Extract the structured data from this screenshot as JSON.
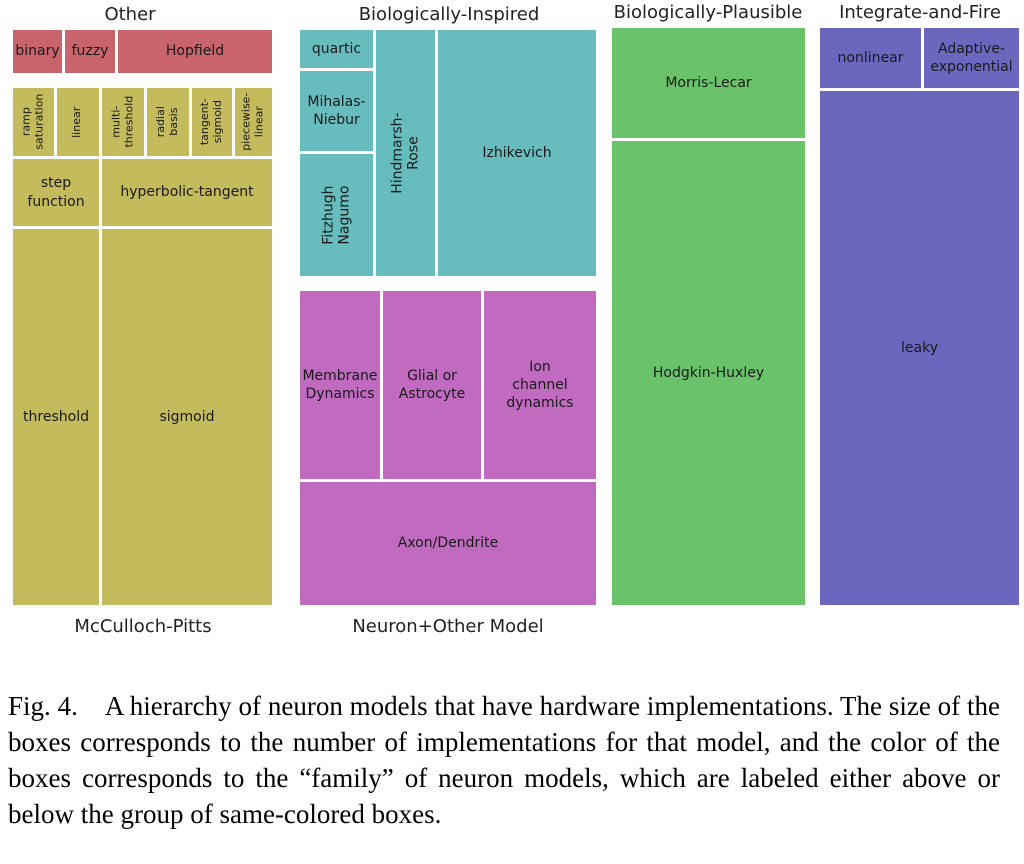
{
  "groups": {
    "other": "Other",
    "biologically_inspired": "Biologically-Inspired",
    "biologically_plausible": "Biologically-Plausible",
    "integrate_and_fire": "Integrate-and-Fire",
    "mcculloch_pitts": "McCulloch-Pitts",
    "neuron_other": "Neuron+Other Model"
  },
  "boxes": {
    "binary": "binary",
    "fuzzy": "fuzzy",
    "hopfield": "Hopfield",
    "ramp_saturation": "ramp\nsaturation",
    "linear": "linear",
    "multi_threshold": "multi-\nthreshold",
    "radial_basis": "radial\nbasis",
    "tangent_sigmoid": "tangent-\nsigmoid",
    "piecewise_linear": "piecewise-\nlinear",
    "step_function": "step\nfunction",
    "hyperbolic_tangent": "hyperbolic-tangent",
    "threshold": "threshold",
    "sigmoid": "sigmoid",
    "quartic": "quartic",
    "mihalas_niebur": "Mihalas-\nNiebur",
    "fitzhugh_nagumo": "Fitzhugh\nNagumo",
    "hindmarsh_rose": "Hindmarsh-Rose",
    "izhikevich": "Izhikevich",
    "membrane_dynamics": "Membrane\nDynamics",
    "glial_astrocyte": "Glial or\nAstrocyte",
    "ion_channel": "Ion\nchannel\ndynamics",
    "axon_dendrite": "Axon/Dendrite",
    "morris_lecar": "Morris-Lecar",
    "hodgkin_huxley": "Hodgkin-Huxley",
    "nonlinear": "nonlinear",
    "adaptive_exponential": "Adaptive-\nexponential",
    "leaky": "leaky"
  },
  "caption": "Fig. 4. A hierarchy of neuron models that have hardware implementations. The size of the boxes corresponds to the number of implementations for that model, and the color of the boxes corresponds to the “family” of neuron models, which are labeled either above or below the group of same-colored boxes.",
  "chart_data": {
    "type": "treemap",
    "title": "",
    "families": [
      {
        "name": "Other",
        "color": "#c9646c",
        "items": [
          "binary",
          "fuzzy",
          "Hopfield"
        ]
      },
      {
        "name": "McCulloch-Pitts",
        "color": "#c3bb5c",
        "items": [
          "ramp saturation",
          "linear",
          "multi-threshold",
          "radial basis",
          "tangent-sigmoid",
          "piecewise-linear",
          "step function",
          "hyperbolic-tangent",
          "threshold",
          "sigmoid"
        ]
      },
      {
        "name": "Biologically-Inspired",
        "color": "#67bdbd",
        "items": [
          "quartic",
          "Mihalas-Niebur",
          "Fitzhugh Nagumo",
          "Hindmarsh-Rose",
          "Izhikevich"
        ]
      },
      {
        "name": "Neuron+Other Model",
        "color": "#c06ac0",
        "items": [
          "Membrane Dynamics",
          "Glial or Astrocyte",
          "Ion channel dynamics",
          "Axon/Dendrite"
        ]
      },
      {
        "name": "Biologically-Plausible",
        "color": "#6ac26a",
        "items": [
          "Morris-Lecar",
          "Hodgkin-Huxley"
        ]
      },
      {
        "name": "Integrate-and-Fire",
        "color": "#6b67bf",
        "items": [
          "nonlinear",
          "Adaptive-exponential",
          "leaky"
        ]
      }
    ]
  }
}
